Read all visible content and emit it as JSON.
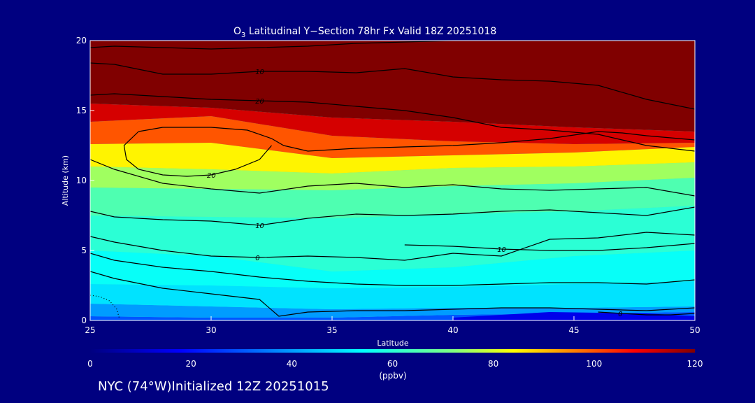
{
  "chart_data": {
    "type": "heatmap",
    "title": "O3 Latitudinal Y-Section 78hr  Fx Valid 18Z 20251018",
    "title_species": "O",
    "title_subscript": "3",
    "title_rest": " Latitudinal Y−Section 78hr  Fx Valid 18Z 20251018",
    "xlabel": "Latitude",
    "ylabel": "Altitude (km)",
    "xlim": [
      25,
      50
    ],
    "ylim": [
      0,
      20
    ],
    "x_ticks": [
      25,
      30,
      35,
      40,
      45,
      50
    ],
    "y_ticks": [
      0,
      5,
      10,
      15,
      20
    ],
    "colorbar": {
      "range": [
        0,
        120
      ],
      "ticks": [
        0,
        20,
        40,
        60,
        80,
        100,
        120
      ],
      "units_label": "(ppbv)"
    },
    "layers": [
      {
        "lat": [
          25,
          30,
          35,
          40,
          45,
          50
        ],
        "altitude": [
          0.3,
          0.2,
          0.2,
          0.4,
          0.5,
          0.6
        ],
        "ozone": 30
      },
      {
        "lat": [
          25,
          30,
          35,
          40,
          45,
          50
        ],
        "altitude": [
          1.2,
          1.0,
          0.8,
          0.9,
          0.9,
          1.0
        ],
        "ozone": 40
      },
      {
        "lat": [
          25,
          30,
          35,
          40,
          45,
          50
        ],
        "altitude": [
          2.6,
          2.5,
          2.3,
          2.4,
          2.6,
          2.8
        ],
        "ozone": 50
      },
      {
        "lat": [
          25,
          30,
          35,
          40,
          45,
          50
        ],
        "altitude": [
          5.0,
          4.6,
          3.5,
          3.8,
          4.6,
          5.0
        ],
        "ozone": 55
      },
      {
        "lat": [
          25,
          30,
          35,
          40,
          45,
          50
        ],
        "altitude": [
          7.5,
          7.4,
          7.3,
          7.6,
          7.8,
          8.2
        ],
        "ozone": 60
      },
      {
        "lat": [
          25,
          30,
          35,
          40,
          45,
          50
        ],
        "altitude": [
          9.5,
          9.4,
          9.3,
          9.6,
          9.8,
          10.2
        ],
        "ozone": 65
      },
      {
        "lat": [
          25,
          30,
          35,
          40,
          45,
          50
        ],
        "altitude": [
          11.0,
          10.8,
          10.5,
          10.9,
          11.0,
          11.3
        ],
        "ozone": 75
      },
      {
        "lat": [
          25,
          30,
          35,
          40,
          45,
          50
        ],
        "altitude": [
          12.6,
          12.7,
          11.6,
          11.8,
          12.0,
          12.4
        ],
        "ozone": 85
      },
      {
        "lat": [
          25,
          30,
          35,
          40,
          45,
          50
        ],
        "altitude": [
          14.2,
          14.6,
          13.2,
          12.8,
          12.6,
          12.7
        ],
        "ozone": 100
      },
      {
        "lat": [
          25,
          30,
          35,
          40,
          45,
          50
        ],
        "altitude": [
          15.5,
          15.2,
          14.5,
          14.2,
          13.8,
          13.5
        ],
        "ozone": 112
      },
      {
        "lat": [
          25,
          30,
          35,
          40,
          45,
          50
        ],
        "altitude": [
          20,
          20,
          20,
          20,
          20,
          20
        ],
        "ozone": 120
      }
    ],
    "low_patches": [
      {
        "lat": [
          40,
          44,
          48,
          50
        ],
        "altitude": [
          0.2,
          0.6,
          0.5,
          0.3
        ],
        "ozone": 15
      }
    ],
    "contours": [
      {
        "label": "10",
        "lat": [
          25,
          26,
          28,
          30,
          32,
          34,
          36,
          38,
          40,
          42,
          44,
          46,
          48,
          50
        ],
        "altitude": [
          18.4,
          18.3,
          17.6,
          17.6,
          17.8,
          17.8,
          17.7,
          18.0,
          17.4,
          17.2,
          17.1,
          16.8,
          15.8,
          15.1
        ]
      },
      {
        "label": "",
        "lat": [
          25,
          26,
          28,
          30,
          32,
          34,
          36,
          38,
          40,
          42,
          44,
          46,
          48,
          50
        ],
        "altitude": [
          19.5,
          19.6,
          19.5,
          19.4,
          19.5,
          19.6,
          19.8,
          19.9,
          20.0,
          20.0,
          20.0,
          20.0,
          20.0,
          20.0
        ]
      },
      {
        "label": "20",
        "lat": [
          25,
          26,
          28,
          30,
          32,
          34,
          36,
          38,
          40,
          42,
          44,
          46,
          48,
          50
        ],
        "altitude": [
          16.1,
          16.2,
          16.0,
          15.8,
          15.7,
          15.6,
          15.3,
          15.0,
          14.5,
          13.8,
          13.6,
          13.3,
          12.5,
          12.1
        ]
      },
      {
        "label": "",
        "lat": [
          27,
          28,
          30,
          31.5,
          32.5,
          33,
          34,
          36,
          38,
          40,
          42,
          44,
          46,
          47,
          48,
          50
        ],
        "altitude": [
          13.5,
          13.8,
          13.8,
          13.6,
          13.0,
          12.5,
          12.1,
          12.3,
          12.4,
          12.5,
          12.7,
          13.0,
          13.5,
          13.4,
          13.2,
          12.9
        ]
      },
      {
        "label": "20",
        "lat": [
          32.5,
          32,
          31,
          30,
          29,
          28,
          27,
          26.5,
          26.4,
          27
        ],
        "altitude": [
          12.5,
          11.5,
          10.8,
          10.4,
          10.3,
          10.4,
          10.8,
          11.5,
          12.5,
          13.5
        ]
      },
      {
        "label": "",
        "lat": [
          25,
          26,
          28,
          30,
          32,
          34,
          36,
          38,
          40,
          42,
          44,
          46,
          48,
          50
        ],
        "altitude": [
          11.5,
          10.8,
          9.8,
          9.4,
          9.1,
          9.6,
          9.8,
          9.5,
          9.7,
          9.4,
          9.3,
          9.4,
          9.5,
          8.9
        ]
      },
      {
        "label": "10",
        "lat": [
          25,
          26,
          28,
          30,
          32,
          34,
          36,
          38,
          40,
          42,
          44,
          46,
          48,
          50
        ],
        "altitude": [
          7.8,
          7.4,
          7.2,
          7.1,
          6.8,
          7.3,
          7.6,
          7.5,
          7.6,
          7.8,
          7.9,
          7.7,
          7.5,
          8.1
        ]
      },
      {
        "label": "0",
        "lat": [
          25,
          26,
          28,
          30,
          32,
          34,
          36,
          38,
          40,
          42,
          44,
          46,
          48,
          50
        ],
        "altitude": [
          6.0,
          5.6,
          5.0,
          4.6,
          4.5,
          4.6,
          4.5,
          4.3,
          4.8,
          4.6,
          5.8,
          5.9,
          6.3,
          6.1
        ]
      },
      {
        "label": "10",
        "lat": [
          38,
          40,
          42,
          44,
          46,
          48,
          50
        ],
        "altitude": [
          5.4,
          5.3,
          5.1,
          5.0,
          5.0,
          5.2,
          5.5
        ]
      },
      {
        "label": "",
        "lat": [
          25,
          26,
          28,
          30,
          32,
          34,
          36,
          38,
          40,
          42,
          44,
          46,
          48,
          50
        ],
        "altitude": [
          4.8,
          4.3,
          3.8,
          3.5,
          3.1,
          2.8,
          2.6,
          2.5,
          2.5,
          2.6,
          2.7,
          2.7,
          2.6,
          2.9
        ]
      },
      {
        "label": "",
        "lat": [
          25,
          26,
          28,
          30,
          32,
          32.8,
          34,
          36,
          38,
          40,
          42,
          44,
          46,
          48,
          50
        ],
        "altitude": [
          3.5,
          3.0,
          2.3,
          1.9,
          1.5,
          0.3,
          0.6,
          0.7,
          0.7,
          0.8,
          0.9,
          0.9,
          0.8,
          0.7,
          0.9
        ]
      },
      {
        "label": "0",
        "lat": [
          46,
          47,
          48,
          49,
          50
        ],
        "altitude": [
          0.6,
          0.5,
          0.4,
          0.4,
          0.5
        ]
      }
    ],
    "dotted_contours": [
      {
        "lat": [
          25,
          25.4,
          25.8,
          26.1,
          26.2
        ],
        "altitude": [
          1.8,
          1.7,
          1.4,
          0.8,
          0.2
        ]
      }
    ]
  },
  "footer": {
    "text": "NYC (74°W)Initialized 12Z 20251015"
  }
}
